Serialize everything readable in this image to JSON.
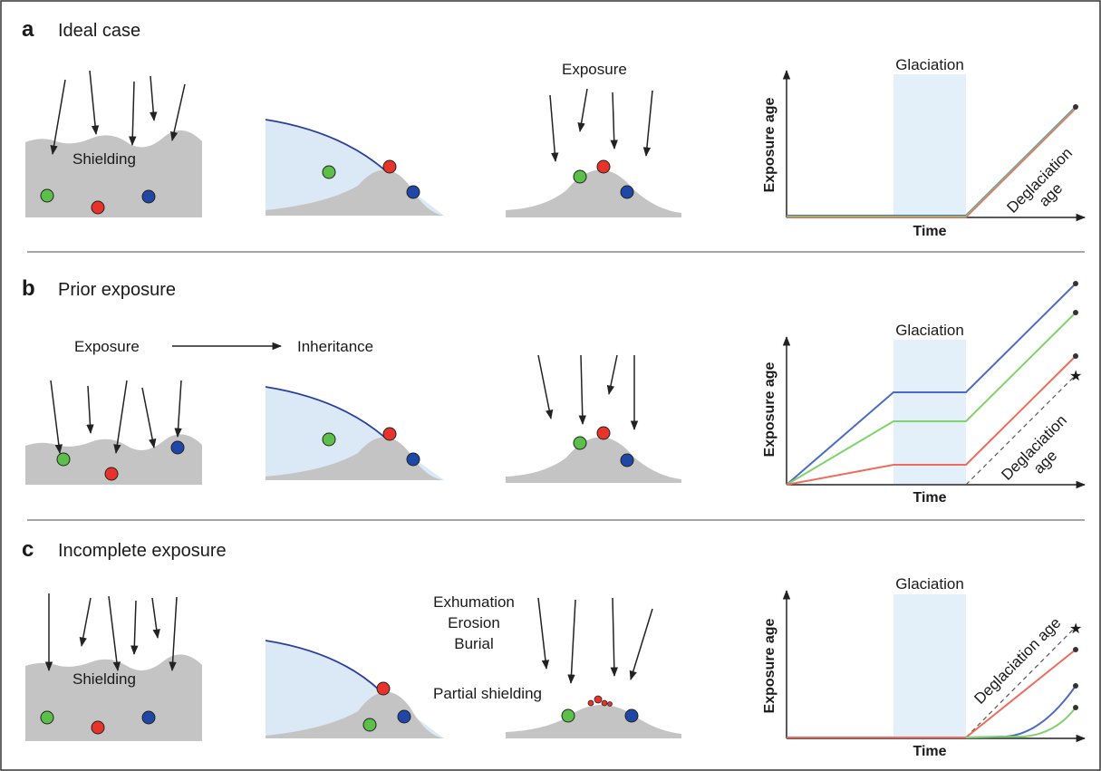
{
  "panels": [
    {
      "letter": "a",
      "title": "Ideal case",
      "labels": {
        "shielding": "Shielding",
        "exposure": "Exposure"
      },
      "chart": {
        "glaciation": "Glaciation",
        "xlabel": "Time",
        "ylabel": "Exposure age",
        "annotation": "Deglaciation\nage"
      }
    },
    {
      "letter": "b",
      "title": "Prior exposure",
      "labels": {
        "exposure": "Exposure",
        "inheritance": "Inheritance"
      },
      "chart": {
        "glaciation": "Glaciation",
        "xlabel": "Time",
        "ylabel": "Exposure age",
        "annotation": "Deglaciation\nage"
      }
    },
    {
      "letter": "c",
      "title": "Incomplete exposure",
      "labels": {
        "shielding": "Shielding",
        "exhumation": "Exhumation",
        "erosion": "Erosion",
        "burial": "Burial",
        "partial_shielding": "Partial shielding"
      },
      "chart": {
        "glaciation": "Glaciation",
        "xlabel": "Time",
        "ylabel": "Exposure age",
        "annotation": "Deglaciation age"
      }
    }
  ],
  "colors": {
    "green": "#5cbf4a",
    "red": "#e8332a",
    "blue": "#1f47a8",
    "rock": "#c4c4c4",
    "ice": "#dbe9f7",
    "ice_edge": "#2b3fa0",
    "glaciation_band": "#e3eff9",
    "line_blue": "#4c6bc4",
    "line_green": "#7fd36b",
    "line_red": "#f06a5e",
    "arrow": "#222222"
  }
}
